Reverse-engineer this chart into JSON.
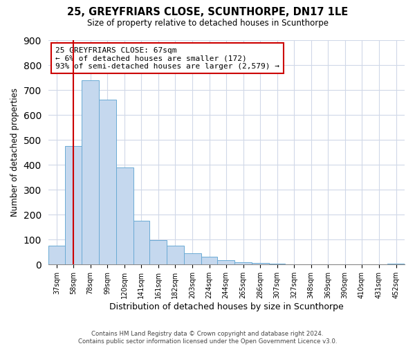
{
  "title": "25, GREYFRIARS CLOSE, SCUNTHORPE, DN17 1LE",
  "subtitle": "Size of property relative to detached houses in Scunthorpe",
  "xlabel": "Distribution of detached houses by size in Scunthorpe",
  "ylabel": "Number of detached properties",
  "bin_labels": [
    "37sqm",
    "58sqm",
    "78sqm",
    "99sqm",
    "120sqm",
    "141sqm",
    "161sqm",
    "182sqm",
    "203sqm",
    "224sqm",
    "244sqm",
    "265sqm",
    "286sqm",
    "307sqm",
    "327sqm",
    "348sqm",
    "369sqm",
    "390sqm",
    "410sqm",
    "431sqm",
    "452sqm"
  ],
  "bin_starts": [
    37,
    58,
    78,
    99,
    120,
    141,
    161,
    182,
    203,
    224,
    244,
    265,
    286,
    307,
    327,
    348,
    369,
    390,
    410,
    431,
    452
  ],
  "bin_widths": [
    21,
    20,
    21,
    21,
    21,
    20,
    21,
    21,
    21,
    20,
    21,
    21,
    21,
    20,
    21,
    21,
    21,
    20,
    21,
    21,
    21
  ],
  "bar_heights": [
    75,
    475,
    740,
    660,
    390,
    175,
    98,
    75,
    45,
    32,
    18,
    10,
    7,
    3,
    2,
    1,
    0,
    0,
    0,
    0,
    5
  ],
  "bar_color": "#c5d8ee",
  "bar_edge_color": "#6aaad4",
  "property_line_x": 68,
  "property_line_label": "25 GREYFRIARS CLOSE: 67sqm",
  "annotation_line1": "← 6% of detached houses are smaller (172)",
  "annotation_line2": "93% of semi-detached houses are larger (2,579) →",
  "property_line_color": "#cc0000",
  "ylim": [
    0,
    900
  ],
  "yticks": [
    0,
    100,
    200,
    300,
    400,
    500,
    600,
    700,
    800,
    900
  ],
  "footer1": "Contains HM Land Registry data © Crown copyright and database right 2024.",
  "footer2": "Contains public sector information licensed under the Open Government Licence v3.0.",
  "annotation_box_color": "#ffffff",
  "annotation_box_edge": "#cc0000",
  "grid_color": "#d0d8e8"
}
